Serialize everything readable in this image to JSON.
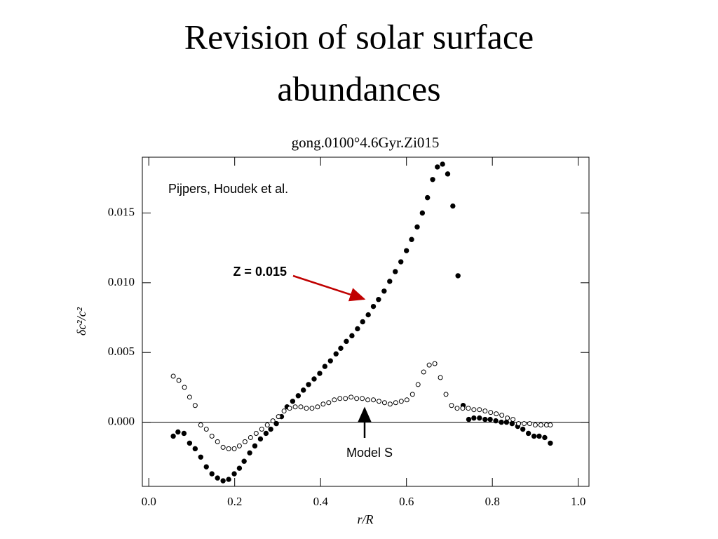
{
  "slide_title": "Revision of solar surface abundances",
  "chart_data": {
    "type": "scatter",
    "title": "gong.0100°4.6Gyr.Zi015",
    "xlabel": "r/R",
    "ylabel": "δc²/c²",
    "xlim": [
      -0.015,
      1.025
    ],
    "ylim": [
      -0.0046,
      0.019
    ],
    "xticks": [
      {
        "value": 0,
        "label": "0.0"
      },
      {
        "value": 0.2,
        "label": "0.2"
      },
      {
        "value": 0.4,
        "label": "0.4"
      },
      {
        "value": 0.6,
        "label": "0.6"
      },
      {
        "value": 0.8,
        "label": "0.8"
      },
      {
        "value": 1,
        "label": "1.0"
      }
    ],
    "yticks": [
      {
        "value": 0,
        "label": "0.000"
      },
      {
        "value": 0.005,
        "label": "0.005"
      },
      {
        "value": 0.01,
        "label": "0.010"
      },
      {
        "value": 0.015,
        "label": "0.015"
      }
    ],
    "hlines": [
      0
    ],
    "annotations": [
      "Pijpers, Houdek et al.",
      "Z = 0.015",
      "Model S"
    ],
    "annotation_colors": [
      "#000000",
      "#c00000",
      "#000000"
    ],
    "series": [
      {
        "marker": "filled",
        "color": "#000000",
        "x": [
          0.057,
          0.068,
          0.082,
          0.095,
          0.108,
          0.121,
          0.134,
          0.147,
          0.16,
          0.173,
          0.186,
          0.199,
          0.211,
          0.222,
          0.235,
          0.247,
          0.26,
          0.273,
          0.284,
          0.297,
          0.309,
          0.322,
          0.335,
          0.348,
          0.36,
          0.372,
          0.385,
          0.398,
          0.41,
          0.423,
          0.436,
          0.447,
          0.46,
          0.473,
          0.486,
          0.498,
          0.511,
          0.523,
          0.535,
          0.548,
          0.561,
          0.574,
          0.587,
          0.6,
          0.612,
          0.625,
          0.637,
          0.649,
          0.661,
          0.672,
          0.684,
          0.696,
          0.708,
          0.72,
          0.732,
          0.745,
          0.757,
          0.77,
          0.783,
          0.795,
          0.808,
          0.821,
          0.833,
          0.846,
          0.859,
          0.871,
          0.884,
          0.897,
          0.909,
          0.922,
          0.935
        ],
        "values": [
          -0.001,
          -0.0007,
          -0.0008,
          -0.0015,
          -0.0019,
          -0.0025,
          -0.0032,
          -0.0037,
          -0.004,
          -0.0042,
          -0.0041,
          -0.0037,
          -0.0033,
          -0.0028,
          -0.0022,
          -0.0017,
          -0.0012,
          -0.0008,
          -0.0005,
          -0.0001,
          0.0004,
          0.0011,
          0.0015,
          0.0019,
          0.0023,
          0.0027,
          0.0031,
          0.0035,
          0.004,
          0.0044,
          0.0049,
          0.0053,
          0.0058,
          0.0062,
          0.0067,
          0.0072,
          0.0077,
          0.0083,
          0.0088,
          0.0094,
          0.0101,
          0.0108,
          0.0115,
          0.0123,
          0.0131,
          0.014,
          0.015,
          0.0161,
          0.0174,
          0.0183,
          0.0185,
          0.0178,
          0.0155,
          0.0105,
          0.0012,
          0.0002,
          0.0003,
          0.0003,
          0.0002,
          0.0002,
          0.0001,
          0.0,
          0.0,
          -0.0001,
          -0.0003,
          -0.0005,
          -0.0008,
          -0.001,
          -0.001,
          -0.0011,
          -0.0015
        ]
      },
      {
        "marker": "open",
        "color": "#000000",
        "x": [
          0.057,
          0.07,
          0.083,
          0.095,
          0.108,
          0.121,
          0.134,
          0.147,
          0.16,
          0.173,
          0.186,
          0.199,
          0.211,
          0.224,
          0.237,
          0.25,
          0.263,
          0.276,
          0.289,
          0.302,
          0.315,
          0.328,
          0.341,
          0.354,
          0.367,
          0.38,
          0.393,
          0.406,
          0.419,
          0.432,
          0.445,
          0.458,
          0.471,
          0.484,
          0.497,
          0.51,
          0.523,
          0.536,
          0.549,
          0.562,
          0.575,
          0.588,
          0.601,
          0.614,
          0.627,
          0.64,
          0.653,
          0.666,
          0.679,
          0.692,
          0.705,
          0.718,
          0.731,
          0.744,
          0.757,
          0.77,
          0.783,
          0.796,
          0.809,
          0.822,
          0.835,
          0.848,
          0.861,
          0.874,
          0.887,
          0.9,
          0.913,
          0.926,
          0.935
        ],
        "values": [
          0.0033,
          0.003,
          0.0025,
          0.0018,
          0.0012,
          -0.0002,
          -0.0005,
          -0.001,
          -0.0014,
          -0.0018,
          -0.0019,
          -0.0019,
          -0.0017,
          -0.0014,
          -0.0011,
          -0.0008,
          -0.0005,
          -0.0002,
          0.0001,
          0.0004,
          0.0008,
          0.001,
          0.0011,
          0.0011,
          0.001,
          0.001,
          0.0011,
          0.0013,
          0.0014,
          0.0016,
          0.0017,
          0.0017,
          0.0018,
          0.0017,
          0.0017,
          0.0016,
          0.0016,
          0.0015,
          0.0014,
          0.0013,
          0.0014,
          0.0015,
          0.0016,
          0.002,
          0.0027,
          0.0036,
          0.0041,
          0.0042,
          0.0032,
          0.002,
          0.0012,
          0.001,
          0.001,
          0.001,
          0.0009,
          0.0009,
          0.0008,
          0.0007,
          0.0006,
          0.0005,
          0.0003,
          0.0002,
          -0.0001,
          -0.0001,
          -0.0001,
          -0.0002,
          -0.0002,
          -0.0002,
          -0.0002
        ]
      }
    ]
  }
}
